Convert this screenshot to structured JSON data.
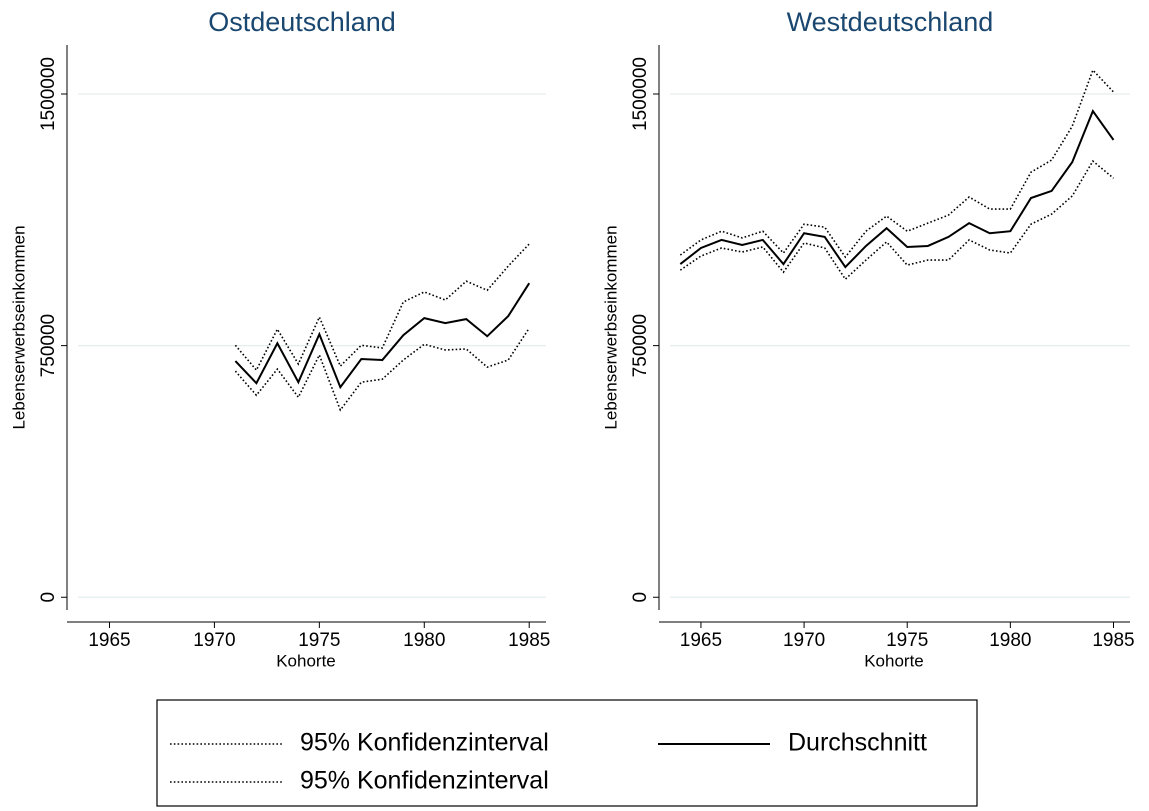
{
  "chart_data": [
    {
      "type": "line",
      "title": "Ostdeutschland",
      "x_label": "Kohorte",
      "y_label": "Lebenserwerbseinkommen",
      "x": [
        1971,
        1972,
        1973,
        1974,
        1975,
        1976,
        1977,
        1978,
        1979,
        1980,
        1981,
        1982,
        1983,
        1984,
        1985
      ],
      "xlim": [
        1963.5,
        1985.8
      ],
      "xticks": [
        1965,
        1970,
        1975,
        1980,
        1985
      ],
      "ylim": [
        -38000,
        1646000
      ],
      "yticks": [
        0,
        750000,
        1500000
      ],
      "grid": true,
      "series": [
        {
          "name": "95% Konfidenzinterval",
          "color": "#000000",
          "dash": true,
          "values": [
            674000,
            602000,
            680000,
            596000,
            722000,
            558000,
            641000,
            650000,
            707000,
            754000,
            737000,
            740000,
            686000,
            707000,
            802000
          ]
        },
        {
          "name": "95% Konfidenzinterval",
          "color": "#000000",
          "dash": true,
          "values": [
            751000,
            677000,
            799000,
            695000,
            835000,
            689000,
            751000,
            743000,
            880000,
            910000,
            886000,
            942000,
            915000,
            987000,
            1053000
          ]
        },
        {
          "name": "Durchschnitt",
          "color": "#000000",
          "dash": false,
          "values": [
            704000,
            638000,
            757000,
            641000,
            784000,
            626000,
            710000,
            707000,
            781000,
            832000,
            817000,
            829000,
            778000,
            838000,
            936000
          ]
        }
      ]
    },
    {
      "type": "line",
      "title": "Westdeutschland",
      "x_label": "Kohorte",
      "y_label": "Lebenserwerbseinkommen",
      "x": [
        1964,
        1965,
        1966,
        1967,
        1968,
        1969,
        1970,
        1971,
        1972,
        1973,
        1974,
        1975,
        1976,
        1977,
        1978,
        1979,
        1980,
        1981,
        1982,
        1983,
        1984,
        1985
      ],
      "xlim": [
        1963.5,
        1985.8
      ],
      "xticks": [
        1965,
        1970,
        1975,
        1980,
        1985
      ],
      "ylim": [
        -38000,
        1646000
      ],
      "yticks": [
        0,
        750000,
        1500000
      ],
      "grid": true,
      "series": [
        {
          "color": "#000000",
          "dash": true,
          "values": [
            975000,
            1017000,
            1041000,
            1029000,
            1044000,
            969000,
            1056000,
            1041000,
            948000,
            1005000,
            1059000,
            990000,
            1005000,
            1005000,
            1065000,
            1035000,
            1026000,
            1112000,
            1142000,
            1196000,
            1300000,
            1249000
          ]
        },
        {
          "color": "#000000",
          "dash": true,
          "values": [
            1020000,
            1065000,
            1091000,
            1071000,
            1091000,
            1026000,
            1112000,
            1103000,
            1014000,
            1091000,
            1136000,
            1091000,
            1115000,
            1139000,
            1193000,
            1157000,
            1157000,
            1267000,
            1303000,
            1404000,
            1571000,
            1506000
          ]
        },
        {
          "color": "#000000",
          "dash": false,
          "values": [
            993000,
            1041000,
            1065000,
            1050000,
            1065000,
            993000,
            1085000,
            1074000,
            984000,
            1047000,
            1100000,
            1044000,
            1047000,
            1074000,
            1115000,
            1085000,
            1091000,
            1190000,
            1211000,
            1297000,
            1449000,
            1363000
          ]
        }
      ]
    }
  ]
}
